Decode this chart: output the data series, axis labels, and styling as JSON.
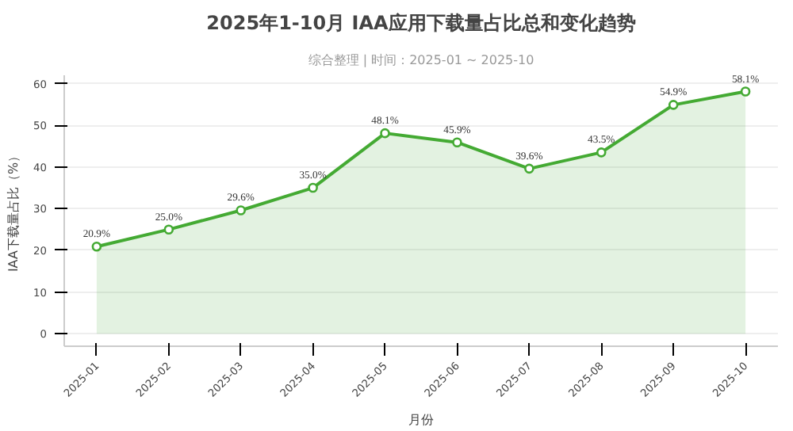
{
  "chart_data": {
    "type": "area",
    "title": "2025年1-10月 IAA应用下载量占比总和变化趋势",
    "subtitle": "综合整理 | 时间：2025-01 ~ 2025-10",
    "xlabel": "月份",
    "ylabel": "IAA下载量占比（%）",
    "categories": [
      "2025-01",
      "2025-02",
      "2025-03",
      "2025-04",
      "2025-05",
      "2025-06",
      "2025-07",
      "2025-08",
      "2025-09",
      "2025-10"
    ],
    "series": [
      {
        "color": "#44aa33",
        "values": [
          20.9,
          25.0,
          29.6,
          35.0,
          48.1,
          45.9,
          39.6,
          43.5,
          54.9,
          58.1
        ],
        "value_labels": [
          "20.9%",
          "25.0%",
          "29.6%",
          "35.0%",
          "48.1%",
          "45.9%",
          "39.6%",
          "43.5%",
          "54.9%",
          "58.1%"
        ]
      }
    ],
    "ylim": [
      -3,
      62
    ],
    "yticks": [
      0,
      10,
      20,
      30,
      40,
      50,
      60
    ],
    "grid": "y",
    "marker": "circle",
    "line_style": "solid"
  }
}
